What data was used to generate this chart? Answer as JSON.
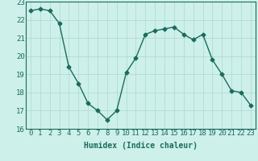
{
  "x": [
    0,
    1,
    2,
    3,
    4,
    5,
    6,
    7,
    8,
    9,
    10,
    11,
    12,
    13,
    14,
    15,
    16,
    17,
    18,
    19,
    20,
    21,
    22,
    23
  ],
  "y": [
    22.5,
    22.6,
    22.5,
    21.8,
    19.4,
    18.5,
    17.4,
    17.0,
    16.5,
    17.0,
    19.1,
    19.9,
    21.2,
    21.4,
    21.5,
    21.6,
    21.2,
    20.9,
    21.2,
    19.8,
    19.0,
    18.1,
    18.0,
    17.3
  ],
  "line_color": "#1a6b5e",
  "marker": "D",
  "marker_size": 2.5,
  "bg_color": "#cef0ea",
  "grid_color": "#a8d8d0",
  "xlabel": "Humidex (Indice chaleur)",
  "xlim": [
    -0.5,
    23.5
  ],
  "ylim": [
    16,
    23
  ],
  "yticks": [
    16,
    17,
    18,
    19,
    20,
    21,
    22,
    23
  ],
  "xticks": [
    0,
    1,
    2,
    3,
    4,
    5,
    6,
    7,
    8,
    9,
    10,
    11,
    12,
    13,
    14,
    15,
    16,
    17,
    18,
    19,
    20,
    21,
    22,
    23
  ],
  "xlabel_fontsize": 7,
  "tick_fontsize": 6.5,
  "line_width": 1.0,
  "font_family": "monospace"
}
